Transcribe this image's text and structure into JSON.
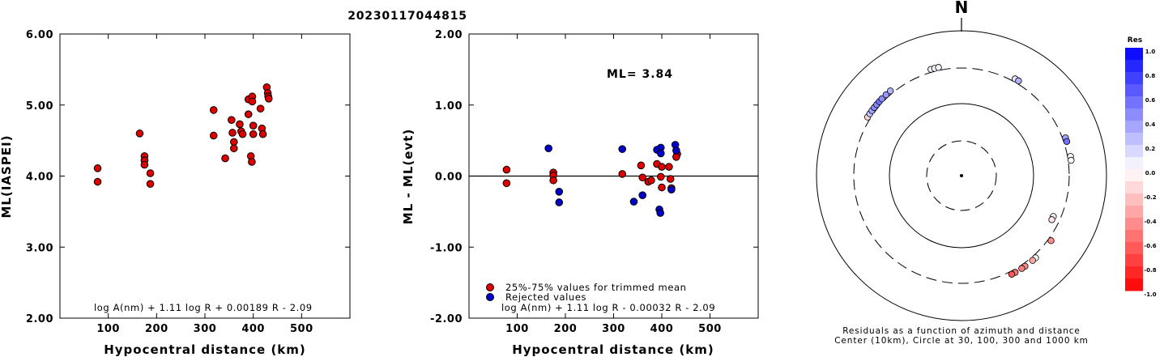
{
  "title": "20230117044815",
  "left_panel": {
    "ylabel": "ML(IASPEI)",
    "xlabel": "Hypocentral distance (km)",
    "formula": "log A(nm) + 1.11 log R + 0.00189 R - 2.09",
    "yticks": [
      "2.00",
      "3.00",
      "4.00",
      "5.00",
      "6.00"
    ],
    "xticks": [
      "100",
      "200",
      "300",
      "400",
      "500"
    ]
  },
  "middle_panel": {
    "ylabel": "ML - ML(evt)",
    "xlabel": "Hypocentral distance (km)",
    "ml_label": "ML= 3.84",
    "formula": "log A(nm) + 1.11 log R - 0.00032 R - 2.09",
    "legend_accepted": "25%-75% values for trimmed mean",
    "legend_rejected": "Rejected values",
    "yticks": [
      "-2.00",
      "-1.00",
      "0.00",
      "1.00",
      "2.00"
    ],
    "xticks": [
      "100",
      "200",
      "300",
      "400",
      "500"
    ]
  },
  "right_panel": {
    "north_label": "N",
    "caption_line1": "Residuals as a function of azimuth and distance",
    "caption_line2": "Center (10km), Circle at 30, 100, 300 and 1000 km",
    "colorbar_title": "Res",
    "colorbar_ticks": [
      "1.0",
      "0.8",
      "0.6",
      "0.4",
      "0.2",
      "0.0",
      "-0.2",
      "-0.4",
      "-0.6",
      "-0.8",
      "-1.0"
    ]
  },
  "colors": {
    "accepted": "#dd0000",
    "rejected": "#0000cc",
    "positive_residual": "#0000ff",
    "negative_residual": "#ff0000"
  },
  "chart_data": [
    {
      "type": "scatter",
      "ylabel": "ML(IASPEI)",
      "xlabel": "Hypocentral distance (km)",
      "xlim": [
        0,
        600
      ],
      "ylim": [
        2.0,
        6.0
      ],
      "grid": false,
      "series": [
        {
          "points": [
            [
              78,
              4.11
            ],
            [
              78,
              3.92
            ],
            [
              165,
              4.6
            ],
            [
              175,
              4.28
            ],
            [
              175,
              4.22
            ],
            [
              175,
              4.16
            ],
            [
              187,
              4.04
            ],
            [
              187,
              3.89
            ],
            [
              318,
              4.93
            ],
            [
              318,
              4.57
            ],
            [
              342,
              4.25
            ],
            [
              355,
              4.79
            ],
            [
              357,
              4.61
            ],
            [
              360,
              4.48
            ],
            [
              360,
              4.39
            ],
            [
              372,
              4.73
            ],
            [
              375,
              4.63
            ],
            [
              378,
              4.59
            ],
            [
              390,
              5.08
            ],
            [
              390,
              4.87
            ],
            [
              395,
              4.28
            ],
            [
              397,
              4.2
            ],
            [
              398,
              5.12
            ],
            [
              398,
              5.05
            ],
            [
              400,
              4.71
            ],
            [
              400,
              4.59
            ],
            [
              415,
              4.95
            ],
            [
              418,
              4.67
            ],
            [
              420,
              4.59
            ],
            [
              428,
              5.25
            ],
            [
              430,
              5.17
            ],
            [
              431,
              5.12
            ],
            [
              432,
              5.09
            ]
          ]
        }
      ]
    },
    {
      "type": "scatter",
      "ylabel": "ML - ML(evt)",
      "xlabel": "Hypocentral distance (km)",
      "xlim": [
        0,
        600
      ],
      "ylim": [
        -2.0,
        2.0
      ],
      "grid": false,
      "series": [
        {
          "name": "25%-75% values for trimmed mean",
          "points": [
            [
              78,
              0.09
            ],
            [
              78,
              -0.1
            ],
            [
              175,
              0.05
            ],
            [
              175,
              0.01
            ],
            [
              175,
              -0.06
            ],
            [
              318,
              0.03
            ],
            [
              357,
              0.15
            ],
            [
              360,
              -0.02
            ],
            [
              372,
              -0.08
            ],
            [
              378,
              -0.06
            ],
            [
              390,
              0.17
            ],
            [
              400,
              0.13
            ],
            [
              398,
              -0.01
            ],
            [
              400,
              -0.16
            ],
            [
              415,
              0.13
            ],
            [
              418,
              -0.04
            ],
            [
              420,
              -0.17
            ],
            [
              432,
              0.31
            ],
            [
              430,
              0.27
            ]
          ]
        },
        {
          "name": "Rejected values",
          "points": [
            [
              165,
              0.39
            ],
            [
              187,
              -0.22
            ],
            [
              187,
              -0.37
            ],
            [
              318,
              0.38
            ],
            [
              342,
              -0.36
            ],
            [
              360,
              -0.27
            ],
            [
              390,
              0.37
            ],
            [
              398,
              0.4
            ],
            [
              398,
              0.32
            ],
            [
              395,
              -0.47
            ],
            [
              397,
              -0.52
            ],
            [
              428,
              0.44
            ],
            [
              430,
              0.36
            ],
            [
              420,
              -0.19
            ]
          ]
        }
      ]
    },
    {
      "type": "scatter",
      "title": "Residuals as a function of azimuth and distance",
      "points_azimuth_distance_residual": [
        [
          302,
          330,
          -0.15
        ],
        [
          304,
          330,
          0.25
        ],
        [
          306,
          330,
          0.35
        ],
        [
          308,
          330,
          0.45
        ],
        [
          310,
          330,
          0.45
        ],
        [
          312,
          330,
          0.55
        ],
        [
          314,
          330,
          0.45
        ],
        [
          317,
          330,
          0.4
        ],
        [
          320,
          330,
          0.3
        ],
        [
          344,
          330,
          0.05
        ],
        [
          346,
          330,
          0.0
        ],
        [
          348,
          330,
          0.05
        ],
        [
          29,
          330,
          0.1
        ],
        [
          31,
          330,
          0.3
        ],
        [
          70,
          330,
          0.35
        ],
        [
          72,
          330,
          0.55
        ],
        [
          80,
          330,
          0.0
        ],
        [
          82,
          330,
          0.0
        ],
        [
          114,
          240,
          0.05
        ],
        [
          116,
          240,
          -0.1
        ],
        [
          126,
          330,
          -0.45
        ],
        [
          138,
          330,
          0.0
        ],
        [
          140,
          330,
          -0.35
        ],
        [
          145,
          330,
          -0.45
        ],
        [
          147,
          330,
          -0.5
        ],
        [
          151,
          330,
          -0.55
        ],
        [
          153,
          330,
          -0.65
        ]
      ]
    }
  ]
}
